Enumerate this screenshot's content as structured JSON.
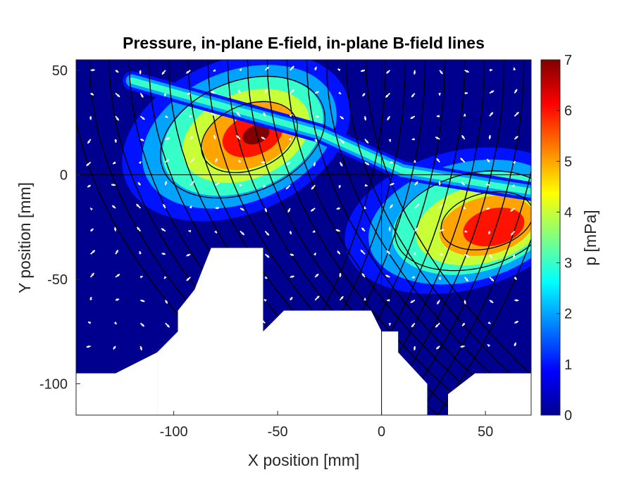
{
  "chart_data": {
    "type": "heatmap",
    "title": "Pressure, in-plane E-field, in-plane B-field lines",
    "xlabel": "X position [mm]",
    "ylabel": "Y position [mm]",
    "xlim": [
      -147,
      72
    ],
    "ylim": [
      -115,
      55
    ],
    "x_ticks": [
      "-100",
      "-50",
      "0",
      "50"
    ],
    "y_ticks": [
      "50",
      "0",
      "-50",
      "-100"
    ],
    "colorbar": {
      "label": "p [mPa]",
      "range": [
        0,
        7
      ],
      "ticks": [
        "0",
        "1",
        "2",
        "3",
        "4",
        "5",
        "6",
        "7"
      ],
      "colormap": [
        "#00008f",
        "#0000ff",
        "#0080ff",
        "#00ffff",
        "#80ff80",
        "#ffff00",
        "#ff8000",
        "#ff0000",
        "#800000"
      ]
    },
    "pressure_peaks": [
      {
        "x": -67,
        "y": 20,
        "p": 7.0
      },
      {
        "x": 65,
        "y": -25,
        "p": 6.6
      }
    ],
    "grid": false,
    "overlays": [
      "pressure filled contours",
      "in-plane E-field vectors (white)",
      "in-plane B-field lines (black)"
    ]
  },
  "colors": {
    "background_field": "#00008f",
    "vector_color": "#ffffff",
    "field_line_color": "#000000",
    "void_color": "#ffffff"
  }
}
